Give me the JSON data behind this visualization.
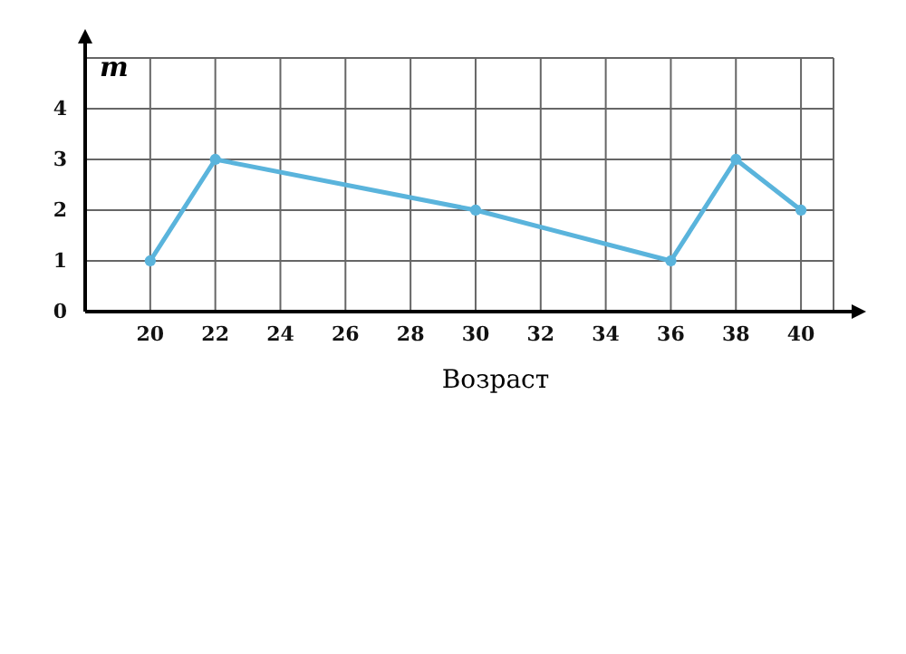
{
  "chart_data": {
    "type": "line",
    "xlabel": "Возраст",
    "ylabel": "m",
    "x": [
      20,
      22,
      30,
      36,
      38,
      40
    ],
    "series": [
      {
        "color": "#5ab4dc",
        "values": [
          1,
          3,
          2,
          1,
          3,
          2
        ]
      }
    ],
    "xlim": [
      18,
      41
    ],
    "xticks": [
      20,
      22,
      24,
      26,
      28,
      30,
      32,
      34,
      36,
      38,
      40
    ],
    "ylim": [
      0,
      5
    ],
    "yticks": [
      0,
      1,
      2,
      3,
      4
    ],
    "grid": true,
    "marker": "circle",
    "line_style": "solid"
  }
}
